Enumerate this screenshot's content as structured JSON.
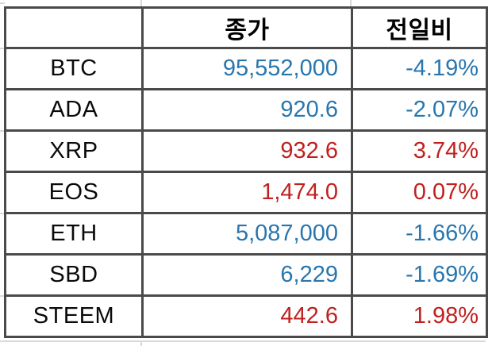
{
  "table": {
    "columns": [
      {
        "label": ""
      },
      {
        "label": "종가"
      },
      {
        "label": "전일비"
      }
    ],
    "rows": [
      {
        "symbol": "BTC",
        "close": "95,552,000",
        "change": "-4.19%",
        "direction": "down"
      },
      {
        "symbol": "ADA",
        "close": "920.6",
        "change": "-2.07%",
        "direction": "down"
      },
      {
        "symbol": "XRP",
        "close": "932.6",
        "change": "3.74%",
        "direction": "up"
      },
      {
        "symbol": "EOS",
        "close": "1,474.0",
        "change": "0.07%",
        "direction": "up"
      },
      {
        "symbol": "ETH",
        "close": "5,087,000",
        "change": "-1.66%",
        "direction": "down"
      },
      {
        "symbol": "SBD",
        "close": "6,229",
        "change": "-1.69%",
        "direction": "down"
      },
      {
        "symbol": "STEEM",
        "close": "442.6",
        "change": "1.98%",
        "direction": "up"
      }
    ],
    "colors": {
      "up": "#c0201e",
      "down": "#2876ae",
      "border": "#4a4a4a",
      "header_text": "#000000",
      "gridline": "#d9d9d9"
    }
  }
}
